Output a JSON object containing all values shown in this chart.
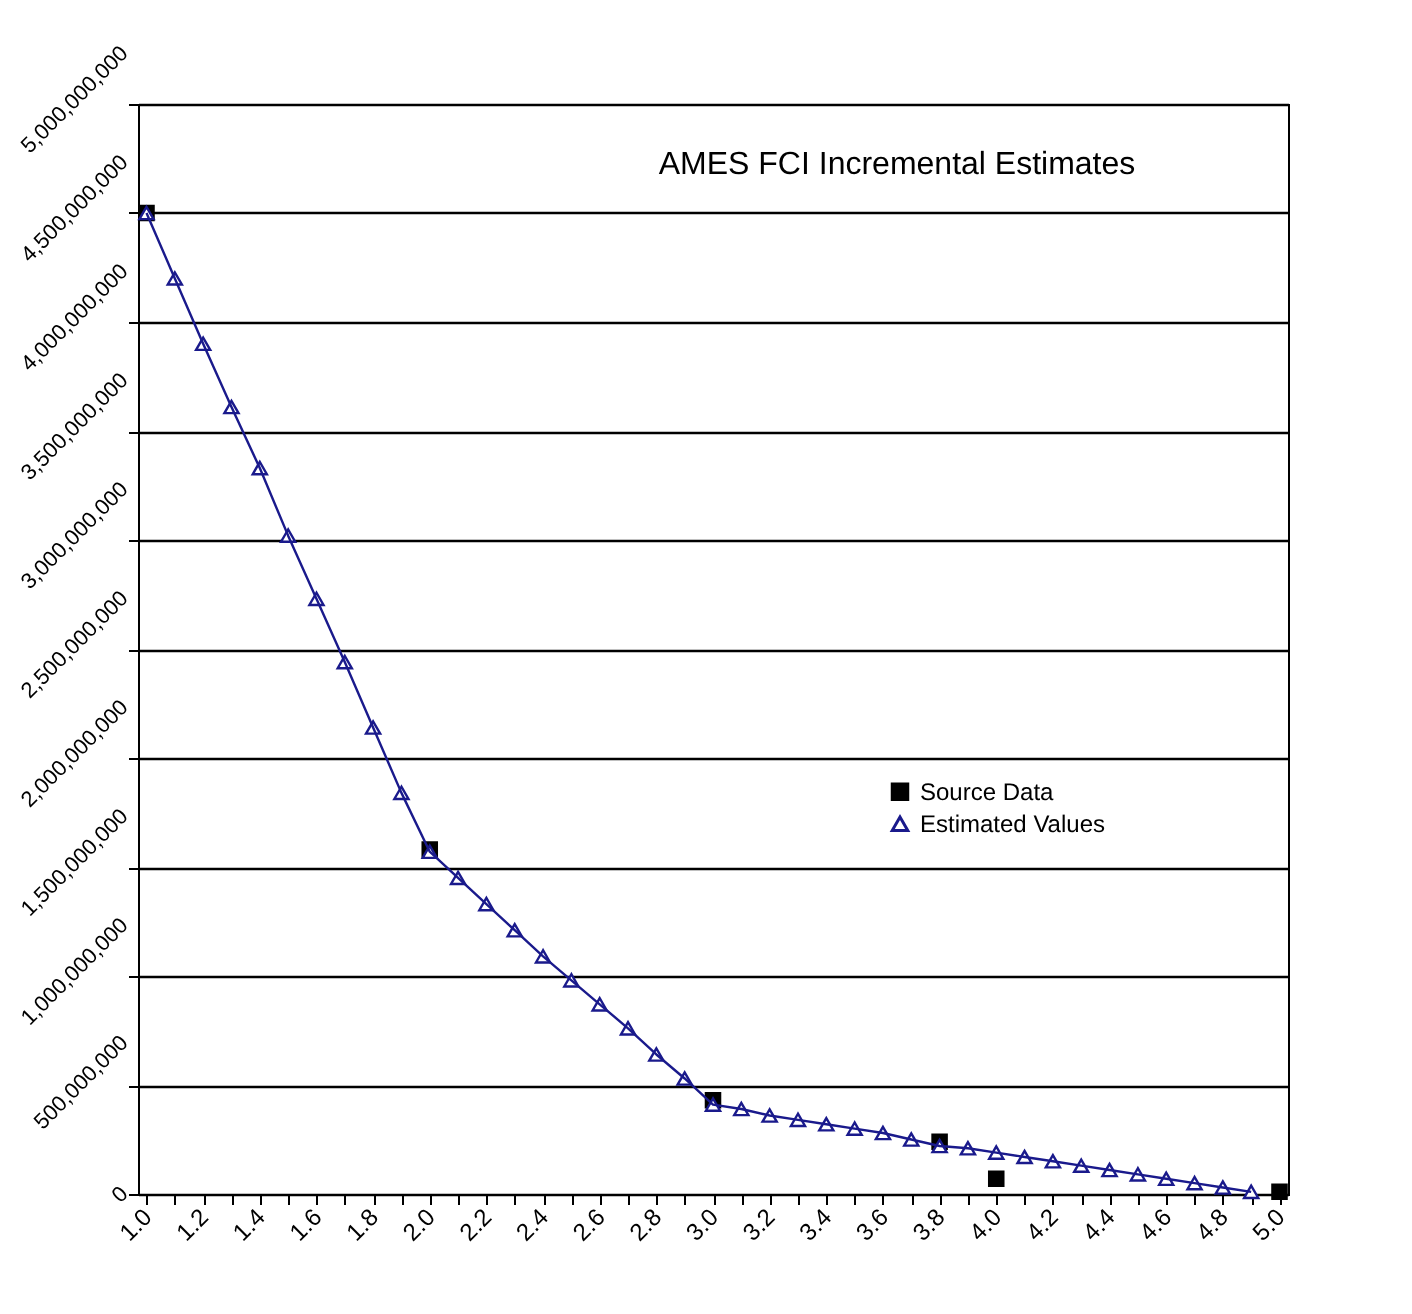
{
  "chart_data": {
    "type": "line",
    "title": "AMES FCI Incremental Estimates",
    "categories": [
      "1.0",
      null,
      "1.2",
      null,
      "1.4",
      null,
      "1.6",
      null,
      "1.8",
      null,
      "2.0",
      null,
      "2.2",
      null,
      "2.4",
      null,
      "2.6",
      null,
      "2.8",
      null,
      "3.0",
      null,
      "3.2",
      null,
      "3.4",
      null,
      "3.6",
      null,
      "3.8",
      null,
      "4.0",
      null,
      "4.2",
      null,
      "4.4",
      null,
      "4.6",
      null,
      "4.8",
      null,
      "5.0"
    ],
    "series": [
      {
        "name": "Source Data",
        "type": "scatter",
        "marker": "square",
        "color": "#000000",
        "values": [
          4500000000,
          null,
          null,
          null,
          null,
          null,
          null,
          null,
          null,
          null,
          1580000000,
          null,
          null,
          null,
          null,
          null,
          null,
          null,
          null,
          null,
          430000000,
          null,
          null,
          null,
          null,
          null,
          null,
          null,
          240000000,
          null,
          70000000,
          null,
          null,
          null,
          null,
          null,
          null,
          null,
          null,
          null,
          10000000
        ]
      },
      {
        "name": "Estimated Values",
        "type": "line",
        "marker": "triangle",
        "color": "#1a1a8c",
        "values": [
          4500000000,
          4200000000,
          3900000000,
          3610000000,
          3330000000,
          3020000000,
          2730000000,
          2440000000,
          2140000000,
          1840000000,
          1570000000,
          1450000000,
          1330000000,
          1210000000,
          1090000000,
          980000000,
          870000000,
          760000000,
          640000000,
          530000000,
          410000000,
          390000000,
          360000000,
          340000000,
          320000000,
          300000000,
          280000000,
          250000000,
          220000000,
          210000000,
          190000000,
          170000000,
          150000000,
          130000000,
          110000000,
          90000000,
          70000000,
          50000000,
          30000000,
          10000000,
          null
        ]
      }
    ],
    "ylim": [
      0,
      5000000000
    ],
    "yticks": [
      0,
      {
        "value": 500000000,
        "label": "500,000,000"
      },
      {
        "value": 1000000000,
        "label": "1,000,000,000"
      },
      {
        "value": 1500000000,
        "label": "1,500,000,000"
      },
      {
        "value": 2000000000,
        "label": "2,000,000,000"
      },
      {
        "value": 2500000000,
        "label": "2,500,000,000"
      },
      {
        "value": 3000000000,
        "label": "3,000,000,000"
      },
      {
        "value": 3500000000,
        "label": "3,500,000,000"
      },
      {
        "value": 4000000000,
        "label": "4,000,000,000"
      },
      {
        "value": 4500000000,
        "label": "4,500,000,000"
      },
      {
        "value": 5000000000,
        "label": "5,000,000,000"
      }
    ],
    "grid": "y",
    "legend": "right"
  }
}
